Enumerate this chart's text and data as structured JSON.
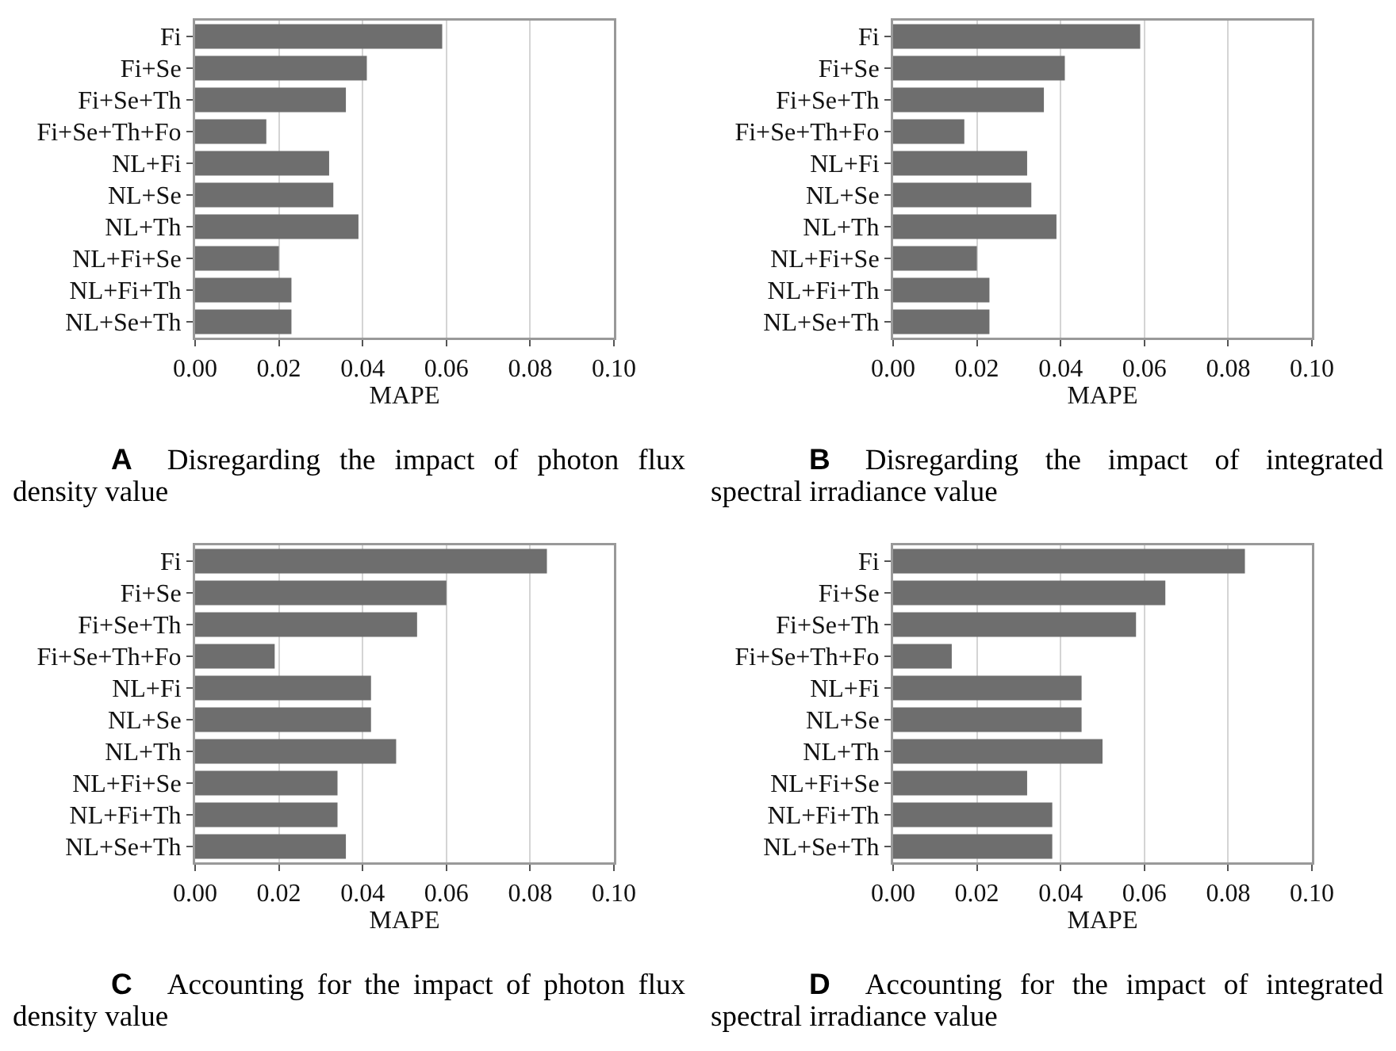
{
  "chart_data": [
    {
      "type": "bar",
      "orientation": "horizontal",
      "categories": [
        "Fi",
        "Fi+Se",
        "Fi+Se+Th",
        "Fi+Se+Th+Fo",
        "NL+Fi",
        "NL+Se",
        "NL+Th",
        "NL+Fi+Se",
        "NL+Fi+Th",
        "NL+Se+Th"
      ],
      "values": [
        0.059,
        0.041,
        0.036,
        0.017,
        0.032,
        0.033,
        0.039,
        0.02,
        0.023,
        0.023
      ],
      "color": "#6e6e6e",
      "xlabel": "MAPE",
      "xlim": [
        0,
        0.1
      ],
      "xticks": [
        {
          "value": 0,
          "label": "0.00"
        },
        {
          "value": 0.02,
          "label": "0.02"
        },
        {
          "value": 0.04,
          "label": "0.04"
        },
        {
          "value": 0.06,
          "label": "0.06"
        },
        {
          "value": 0.08,
          "label": "0.08"
        },
        {
          "value": 0.1,
          "label": "0.10"
        }
      ],
      "grid": "x",
      "annotations": [
        "A",
        "Disregarding the impact of photon flux density value"
      ]
    },
    {
      "type": "bar",
      "orientation": "horizontal",
      "categories": [
        "Fi",
        "Fi+Se",
        "Fi+Se+Th",
        "Fi+Se+Th+Fo",
        "NL+Fi",
        "NL+Se",
        "NL+Th",
        "NL+Fi+Se",
        "NL+Fi+Th",
        "NL+Se+Th"
      ],
      "values": [
        0.059,
        0.041,
        0.036,
        0.017,
        0.032,
        0.033,
        0.039,
        0.02,
        0.023,
        0.023
      ],
      "color": "#6e6e6e",
      "xlabel": "MAPE",
      "xlim": [
        0,
        0.1
      ],
      "xticks": [
        {
          "value": 0,
          "label": "0.00"
        },
        {
          "value": 0.02,
          "label": "0.02"
        },
        {
          "value": 0.04,
          "label": "0.04"
        },
        {
          "value": 0.06,
          "label": "0.06"
        },
        {
          "value": 0.08,
          "label": "0.08"
        },
        {
          "value": 0.1,
          "label": "0.10"
        }
      ],
      "grid": "x",
      "annotations": [
        "B",
        "Disregarding the impact of integrated spectral irradiance value"
      ]
    },
    {
      "type": "bar",
      "orientation": "horizontal",
      "categories": [
        "Fi",
        "Fi+Se",
        "Fi+Se+Th",
        "Fi+Se+Th+Fo",
        "NL+Fi",
        "NL+Se",
        "NL+Th",
        "NL+Fi+Se",
        "NL+Fi+Th",
        "NL+Se+Th"
      ],
      "values": [
        0.084,
        0.06,
        0.053,
        0.019,
        0.042,
        0.042,
        0.048,
        0.034,
        0.034,
        0.036
      ],
      "color": "#6e6e6e",
      "xlabel": "MAPE",
      "xlim": [
        0,
        0.1
      ],
      "xticks": [
        {
          "value": 0,
          "label": "0.00"
        },
        {
          "value": 0.02,
          "label": "0.02"
        },
        {
          "value": 0.04,
          "label": "0.04"
        },
        {
          "value": 0.06,
          "label": "0.06"
        },
        {
          "value": 0.08,
          "label": "0.08"
        },
        {
          "value": 0.1,
          "label": "0.10"
        }
      ],
      "grid": "x",
      "annotations": [
        "C",
        "Accounting for the impact of photon flux density value"
      ]
    },
    {
      "type": "bar",
      "orientation": "horizontal",
      "categories": [
        "Fi",
        "Fi+Se",
        "Fi+Se+Th",
        "Fi+Se+Th+Fo",
        "NL+Fi",
        "NL+Se",
        "NL+Th",
        "NL+Fi+Se",
        "NL+Fi+Th",
        "NL+Se+Th"
      ],
      "values": [
        0.084,
        0.065,
        0.058,
        0.014,
        0.045,
        0.045,
        0.05,
        0.032,
        0.038,
        0.038
      ],
      "color": "#6e6e6e",
      "xlabel": "MAPE",
      "xlim": [
        0,
        0.1
      ],
      "xticks": [
        {
          "value": 0,
          "label": "0.00"
        },
        {
          "value": 0.02,
          "label": "0.02"
        },
        {
          "value": 0.04,
          "label": "0.04"
        },
        {
          "value": 0.06,
          "label": "0.06"
        },
        {
          "value": 0.08,
          "label": "0.08"
        },
        {
          "value": 0.1,
          "label": "0.10"
        }
      ],
      "grid": "x",
      "annotations": [
        "D",
        "Accounting for the impact of integrated spectral irradiance value"
      ]
    }
  ]
}
